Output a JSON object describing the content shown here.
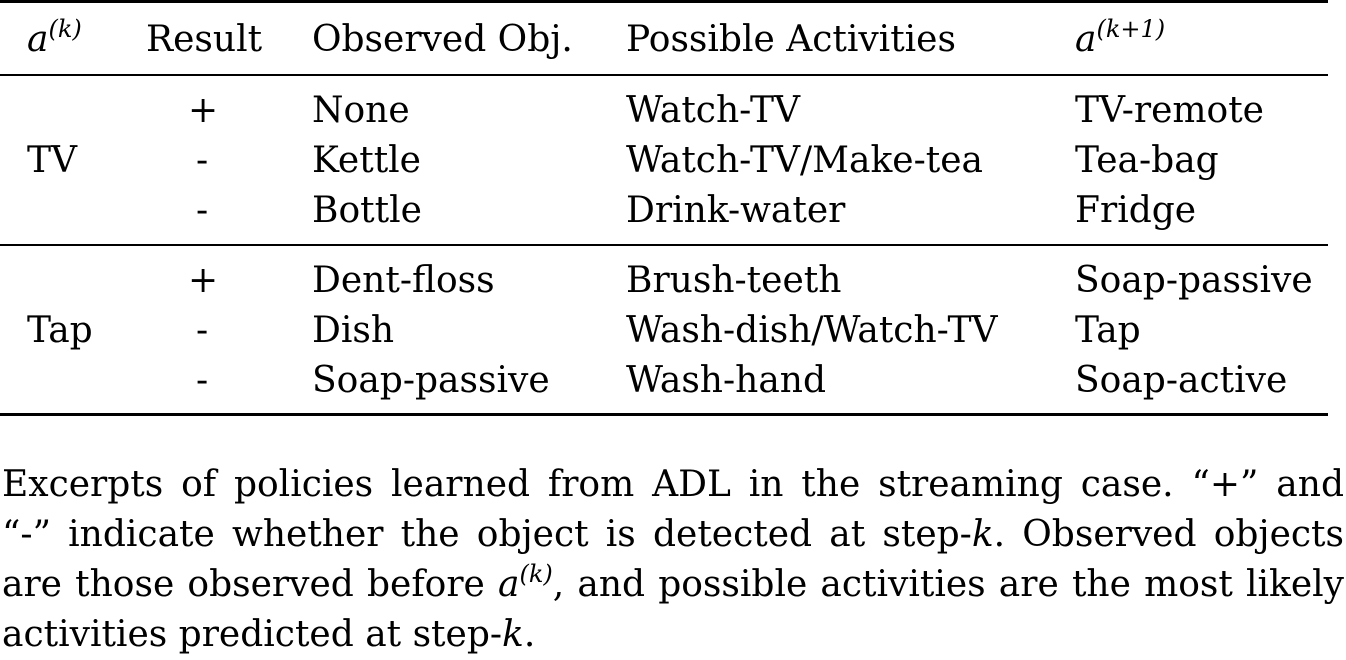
{
  "table": {
    "headers": {
      "ak_base": "a",
      "ak_sup": "(k)",
      "result": "Result",
      "observed": "Observed Obj.",
      "possible": "Possible Activities",
      "ak1_base": "a",
      "ak1_sup": "(k+1)"
    },
    "groups": [
      {
        "action": "TV",
        "rows": [
          {
            "result": "+",
            "observed": "None",
            "possible": "Watch-TV",
            "next": "TV-remote"
          },
          {
            "result": "-",
            "observed": "Kettle",
            "possible": "Watch-TV/Make-tea",
            "next": "Tea-bag"
          },
          {
            "result": "-",
            "observed": "Bottle",
            "possible": "Drink-water",
            "next": "Fridge"
          }
        ]
      },
      {
        "action": "Tap",
        "rows": [
          {
            "result": "+",
            "observed": "Dent-floss",
            "possible": "Brush-teeth",
            "next": "Soap-passive"
          },
          {
            "result": "-",
            "observed": "Dish",
            "possible": "Wash-dish/Watch-TV",
            "next": "Tap"
          },
          {
            "result": "-",
            "observed": "Soap-passive",
            "possible": "Wash-hand",
            "next": "Soap-active"
          }
        ]
      }
    ]
  },
  "caption": {
    "line1": "Excerpts of policies learned from ADL in the streaming case. “+” and",
    "line2a": "“-” indicate whether the object is detected at step-",
    "line2k": "k",
    "line2b": ". Observed objects",
    "line3a": "are those observed before ",
    "line3base": "a",
    "line3sup": "(k)",
    "line3b": ", and possible activities are the most likely",
    "line4a": "activities predicted at step-",
    "line4k": "k",
    "line4b": "."
  }
}
